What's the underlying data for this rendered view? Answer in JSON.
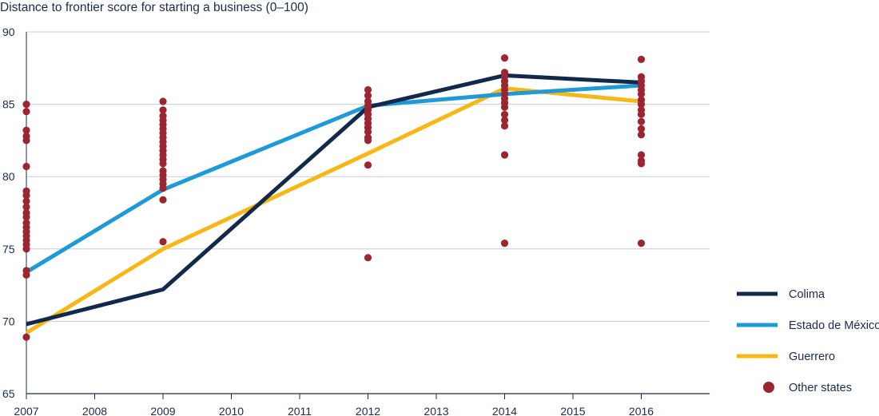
{
  "chart_data": {
    "type": "line",
    "title": "Distance to frontier score for starting a business (0–100)",
    "xlabel": "",
    "ylabel": "",
    "x_ticks": [
      "2007",
      "2008",
      "2009",
      "2010",
      "2011",
      "2012",
      "2013",
      "2014",
      "2015",
      "2016"
    ],
    "xlim": [
      2007,
      2017
    ],
    "ylim": [
      65,
      90
    ],
    "y_ticks": [
      "65",
      "70",
      "75",
      "80",
      "85",
      "90"
    ],
    "grid": "horizontal",
    "legend_position": "right",
    "series": [
      {
        "name": "Colima",
        "color": "#13294b",
        "x": [
          2007,
          2009,
          2012,
          2014,
          2016
        ],
        "y": [
          69.8,
          72.2,
          84.8,
          87.0,
          86.5
        ]
      },
      {
        "name": "Estado de México",
        "color": "#1f9ad6",
        "x": [
          2007,
          2009,
          2012,
          2014,
          2016
        ],
        "y": [
          73.4,
          79.1,
          84.9,
          85.7,
          86.3
        ]
      },
      {
        "name": "Guerrero",
        "color": "#f7b718",
        "x": [
          2007,
          2009,
          2012,
          2014,
          2016
        ],
        "y": [
          69.2,
          75.0,
          81.6,
          86.1,
          85.2
        ]
      }
    ],
    "scatter": {
      "name": "Other states",
      "color": "#9b2530",
      "points": [
        [
          2007,
          85.0
        ],
        [
          2007,
          84.5
        ],
        [
          2007,
          83.2
        ],
        [
          2007,
          82.8
        ],
        [
          2007,
          82.5
        ],
        [
          2007,
          80.7
        ],
        [
          2007,
          79.0
        ],
        [
          2007,
          78.7
        ],
        [
          2007,
          78.3
        ],
        [
          2007,
          77.9
        ],
        [
          2007,
          77.5
        ],
        [
          2007,
          77.2
        ],
        [
          2007,
          76.8
        ],
        [
          2007,
          76.5
        ],
        [
          2007,
          76.2
        ],
        [
          2007,
          75.9
        ],
        [
          2007,
          75.6
        ],
        [
          2007,
          75.3
        ],
        [
          2007,
          75.0
        ],
        [
          2007,
          73.5
        ],
        [
          2007,
          73.2
        ],
        [
          2007,
          68.9
        ],
        [
          2009,
          85.2
        ],
        [
          2009,
          84.6
        ],
        [
          2009,
          84.2
        ],
        [
          2009,
          83.9
        ],
        [
          2009,
          83.6
        ],
        [
          2009,
          83.3
        ],
        [
          2009,
          83.0
        ],
        [
          2009,
          82.7
        ],
        [
          2009,
          82.4
        ],
        [
          2009,
          82.1
        ],
        [
          2009,
          81.8
        ],
        [
          2009,
          81.5
        ],
        [
          2009,
          81.2
        ],
        [
          2009,
          80.9
        ],
        [
          2009,
          80.4
        ],
        [
          2009,
          80.1
        ],
        [
          2009,
          79.8
        ],
        [
          2009,
          79.5
        ],
        [
          2009,
          79.2
        ],
        [
          2009,
          78.4
        ],
        [
          2009,
          75.5
        ],
        [
          2012,
          86.0
        ],
        [
          2012,
          85.6
        ],
        [
          2012,
          85.2
        ],
        [
          2012,
          84.9
        ],
        [
          2012,
          84.6
        ],
        [
          2012,
          84.3
        ],
        [
          2012,
          84.0
        ],
        [
          2012,
          83.7
        ],
        [
          2012,
          83.4
        ],
        [
          2012,
          83.1
        ],
        [
          2012,
          82.7
        ],
        [
          2012,
          82.5
        ],
        [
          2012,
          80.8
        ],
        [
          2012,
          74.4
        ],
        [
          2014,
          88.2
        ],
        [
          2014,
          87.2
        ],
        [
          2014,
          86.9
        ],
        [
          2014,
          86.6
        ],
        [
          2014,
          86.3
        ],
        [
          2014,
          86.0
        ],
        [
          2014,
          85.7
        ],
        [
          2014,
          85.4
        ],
        [
          2014,
          85.1
        ],
        [
          2014,
          84.8
        ],
        [
          2014,
          84.3
        ],
        [
          2014,
          83.9
        ],
        [
          2014,
          83.5
        ],
        [
          2014,
          81.5
        ],
        [
          2014,
          75.4
        ],
        [
          2016,
          88.1
        ],
        [
          2016,
          86.9
        ],
        [
          2016,
          86.6
        ],
        [
          2016,
          86.3
        ],
        [
          2016,
          86.0
        ],
        [
          2016,
          85.7
        ],
        [
          2016,
          85.3
        ],
        [
          2016,
          85.0
        ],
        [
          2016,
          84.6
        ],
        [
          2016,
          84.3
        ],
        [
          2016,
          83.8
        ],
        [
          2016,
          83.3
        ],
        [
          2016,
          82.9
        ],
        [
          2016,
          81.5
        ],
        [
          2016,
          81.1
        ],
        [
          2016,
          80.9
        ],
        [
          2016,
          75.4
        ]
      ]
    }
  }
}
